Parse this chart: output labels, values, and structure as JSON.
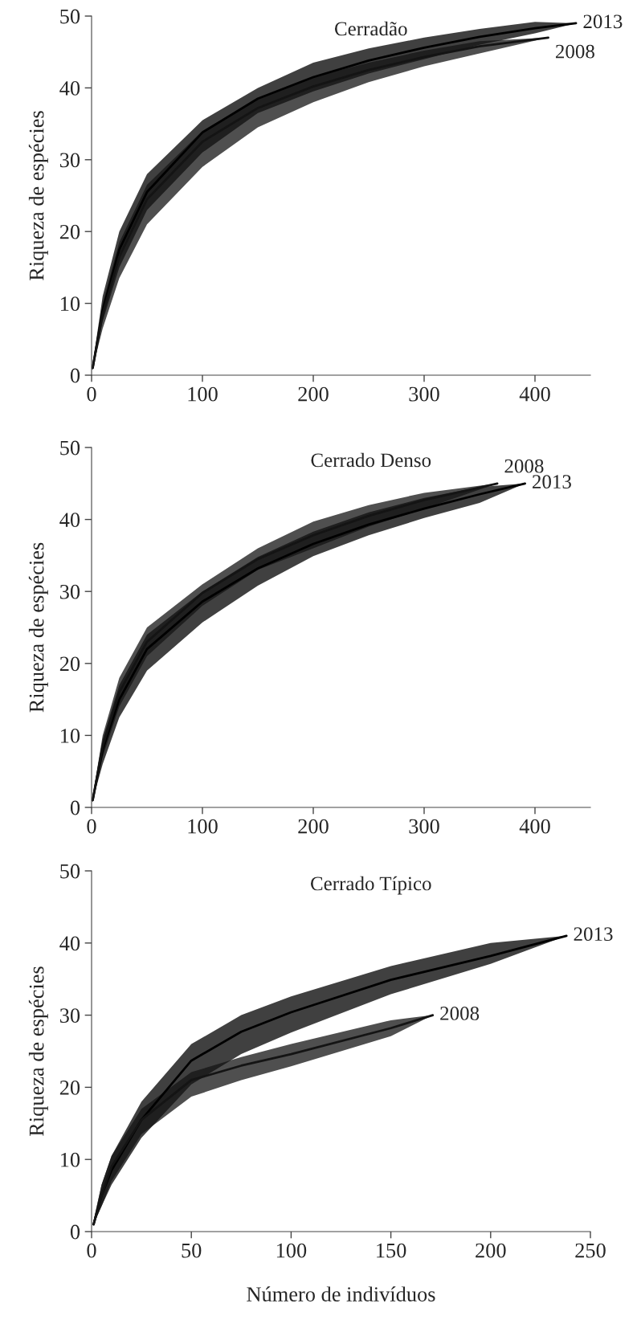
{
  "chart_data": [
    {
      "type": "line",
      "title": "Cerradão",
      "ylabel": "Riqueza de espécies",
      "xlim": [
        0,
        450
      ],
      "xticks": [
        0,
        100,
        200,
        300,
        400
      ],
      "ylim": [
        0,
        50
      ],
      "yticks": [
        0,
        10,
        20,
        30,
        40,
        50
      ],
      "grid": false,
      "legend": false,
      "series": [
        {
          "name": "2013",
          "color": "#000000",
          "x": [
            1,
            10,
            25,
            50,
            100,
            150,
            200,
            250,
            300,
            350,
            400,
            437
          ],
          "values": [
            1,
            9,
            17.5,
            25.5,
            33.8,
            38.5,
            41.5,
            43.8,
            45.6,
            47.1,
            48.3,
            49
          ],
          "upper": [
            1.5,
            11,
            20,
            28,
            35.5,
            40,
            43.5,
            45.5,
            47,
            48.2,
            49.2,
            49
          ],
          "lower": [
            1,
            7.5,
            15,
            23,
            31,
            36.5,
            39.5,
            42,
            44,
            46,
            47.6,
            49
          ]
        },
        {
          "name": "2008",
          "color": "#141414",
          "x": [
            1,
            10,
            25,
            50,
            100,
            150,
            200,
            250,
            300,
            350,
            412
          ],
          "values": [
            1,
            8.5,
            16.5,
            24.5,
            32.5,
            37.2,
            40.2,
            42.5,
            44.3,
            45.8,
            47
          ],
          "upper": [
            1.5,
            10,
            18.5,
            26.5,
            34,
            38.5,
            41.5,
            43.5,
            45.2,
            46.5,
            47
          ],
          "lower": [
            1,
            6.5,
            13.5,
            21,
            29,
            34.5,
            38,
            40.8,
            43,
            44.8,
            47
          ]
        }
      ]
    },
    {
      "type": "line",
      "title": "Cerrado Denso",
      "ylabel": "Riqueza de espécies",
      "xlim": [
        0,
        450
      ],
      "xticks": [
        0,
        100,
        200,
        300,
        400
      ],
      "ylim": [
        0,
        50
      ],
      "yticks": [
        0,
        10,
        20,
        30,
        40,
        50
      ],
      "grid": false,
      "legend": false,
      "series": [
        {
          "name": "2013",
          "color": "#000000",
          "x": [
            1,
            10,
            25,
            50,
            100,
            150,
            200,
            250,
            300,
            350,
            391
          ],
          "values": [
            1,
            8,
            15,
            22,
            28.6,
            33.2,
            36.6,
            39.3,
            41.5,
            43.5,
            45
          ],
          "upper": [
            1.5,
            9.5,
            17,
            24,
            30,
            34.8,
            38.3,
            41,
            43,
            44.5,
            45
          ],
          "lower": [
            1,
            6,
            12.5,
            19,
            25.7,
            30.8,
            34.9,
            37.8,
            40.2,
            42.3,
            45
          ]
        },
        {
          "name": "2008",
          "color": "#141414",
          "x": [
            1,
            10,
            25,
            50,
            100,
            150,
            200,
            250,
            300,
            366
          ],
          "values": [
            1,
            8.5,
            16,
            23,
            29.8,
            34.5,
            37.8,
            40.5,
            42.7,
            45
          ],
          "upper": [
            1.5,
            10,
            18,
            25,
            31,
            36,
            39.7,
            42,
            43.7,
            45
          ],
          "lower": [
            1,
            7,
            14,
            21,
            28,
            33,
            36,
            39,
            41.5,
            45
          ]
        }
      ]
    },
    {
      "type": "line",
      "title": "Cerrado Típico",
      "xlabel": "Número de indivíduos",
      "ylabel": "Riqueza de espécies",
      "xlim": [
        0,
        250
      ],
      "xticks": [
        0,
        50,
        100,
        150,
        200,
        250
      ],
      "ylim": [
        0,
        50
      ],
      "yticks": [
        0,
        10,
        20,
        30,
        40,
        50
      ],
      "grid": false,
      "legend": false,
      "series": [
        {
          "name": "2013",
          "color": "#000000",
          "x": [
            1,
            5,
            10,
            25,
            50,
            75,
            100,
            150,
            200,
            238
          ],
          "values": [
            1,
            5,
            8.5,
            15.5,
            23.7,
            27.7,
            30.4,
            34.9,
            38.2,
            41
          ],
          "upper": [
            1.5,
            6.5,
            10.5,
            18,
            26,
            30,
            32.6,
            36.8,
            40,
            41
          ],
          "lower": [
            1,
            3.5,
            6.5,
            13,
            20.4,
            24.6,
            27.6,
            32.9,
            37.1,
            41
          ]
        },
        {
          "name": "2008",
          "color": "#141414",
          "x": [
            1,
            5,
            10,
            25,
            50,
            75,
            100,
            150,
            171
          ],
          "values": [
            1,
            5,
            9,
            15.5,
            21,
            23,
            24.6,
            28.2,
            30
          ],
          "upper": [
            1.5,
            6.5,
            10.5,
            17,
            22.1,
            24.2,
            26,
            29.3,
            30
          ],
          "lower": [
            1,
            3.5,
            7,
            13.5,
            18.7,
            21,
            22.9,
            27.1,
            30
          ]
        }
      ]
    }
  ]
}
